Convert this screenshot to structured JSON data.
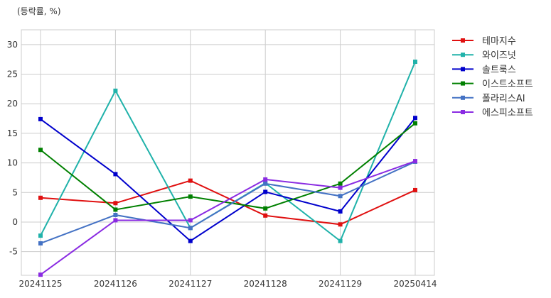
{
  "chart_data": {
    "type": "line",
    "unit_label": "(등락률, %)",
    "categories": [
      "20241125",
      "20241126",
      "20241127",
      "20241128",
      "20241129",
      "20250414"
    ],
    "ylim": [
      -9,
      32.5
    ],
    "yticks": [
      -5,
      0,
      5,
      10,
      15,
      20,
      25,
      30
    ],
    "grid": true,
    "legend_position": "outside-right-top",
    "series": [
      {
        "name": "테마지수",
        "color": "#e01010",
        "values": [
          4.1,
          3.2,
          7.0,
          1.1,
          -0.4,
          5.4
        ]
      },
      {
        "name": "와이즈넛",
        "color": "#20b2aa",
        "values": [
          -2.3,
          22.2,
          -1.0,
          6.6,
          -3.2,
          27.1
        ]
      },
      {
        "name": "솔트룩스",
        "color": "#0000cc",
        "values": [
          17.4,
          8.1,
          -3.2,
          5.1,
          1.8,
          17.6
        ]
      },
      {
        "name": "이스트소프트",
        "color": "#008000",
        "values": [
          12.2,
          2.1,
          4.3,
          2.3,
          6.5,
          16.7
        ]
      },
      {
        "name": "폴라리스AI",
        "color": "#4472c4",
        "values": [
          -3.6,
          1.2,
          -1.0,
          6.5,
          4.4,
          10.2
        ]
      },
      {
        "name": "에스피소프트",
        "color": "#8a2be2",
        "values": [
          -8.9,
          0.3,
          0.3,
          7.2,
          5.8,
          10.3
        ]
      }
    ]
  }
}
